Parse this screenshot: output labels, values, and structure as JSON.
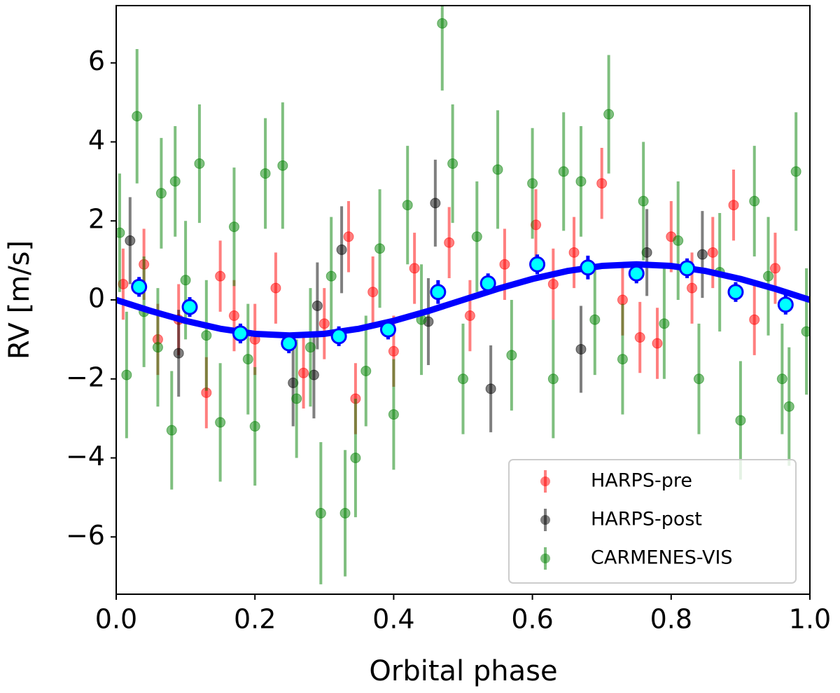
{
  "chart_data": {
    "type": "scatter",
    "xlabel": "Orbital phase",
    "ylabel": "RV [m/s]",
    "xlim": [
      0,
      1
    ],
    "ylim": [
      -7.45,
      7.45
    ],
    "xticks": [
      {
        "value": 0,
        "label": "0.0"
      },
      0.2,
      0.4,
      0.6,
      0.8,
      {
        "value": 1,
        "label": "1.0"
      }
    ],
    "yticks": [
      {
        "value": -6,
        "label": "−6"
      },
      {
        "value": -4,
        "label": "−4"
      },
      {
        "value": -2,
        "label": "−2"
      },
      0,
      2,
      4,
      6
    ],
    "legend": "lower right",
    "series": [
      {
        "name": "HARPS-pre",
        "color": "#ff0000",
        "alpha": 0.5,
        "x": [
          0.01,
          0.04,
          0.06,
          0.09,
          0.13,
          0.15,
          0.17,
          0.2,
          0.23,
          0.27,
          0.3,
          0.335,
          0.345,
          0.37,
          0.4,
          0.43,
          0.48,
          0.51,
          0.56,
          0.605,
          0.63,
          0.66,
          0.7,
          0.73,
          0.755,
          0.78,
          0.8,
          0.83,
          0.86,
          0.89,
          0.92,
          0.95
        ],
        "values": [
          0.4,
          0.9,
          -1.0,
          -0.5,
          -2.35,
          0.6,
          -0.4,
          -1.0,
          0.3,
          -1.85,
          -0.6,
          1.6,
          -2.5,
          0.2,
          -1.3,
          0.8,
          1.45,
          -0.4,
          0.9,
          1.9,
          0.4,
          1.2,
          2.95,
          0.0,
          -0.95,
          -1.1,
          1.6,
          0.3,
          1.2,
          2.4,
          -0.5,
          0.8
        ],
        "errors": [
          0.9,
          0.9,
          0.9,
          0.9,
          0.9,
          0.9,
          0.9,
          0.9,
          0.9,
          0.9,
          0.9,
          0.9,
          0.9,
          0.9,
          0.9,
          0.9,
          0.9,
          0.9,
          0.9,
          0.9,
          0.9,
          0.9,
          0.9,
          0.9,
          0.9,
          0.9,
          0.9,
          0.9,
          0.9,
          0.9,
          0.9,
          0.9
        ]
      },
      {
        "name": "HARPS-post",
        "color": "#000000",
        "alpha": 0.5,
        "x": [
          0.02,
          0.09,
          0.255,
          0.285,
          0.29,
          0.325,
          0.45,
          0.46,
          0.54,
          0.67,
          0.765,
          0.845
        ],
        "values": [
          1.5,
          -1.35,
          -2.1,
          -1.9,
          -0.15,
          1.27,
          -0.55,
          2.45,
          -2.25,
          -1.25,
          1.2,
          1.15
        ],
        "errors": [
          1.1,
          1.1,
          1.1,
          1.1,
          1.1,
          1.1,
          1.1,
          1.1,
          1.1,
          1.1,
          1.1,
          1.1
        ]
      },
      {
        "name": "CARMENES-VIS",
        "color": "#008000",
        "alpha": 0.5,
        "x": [
          0.005,
          0.015,
          0.03,
          0.04,
          0.06,
          0.065,
          0.08,
          0.085,
          0.1,
          0.12,
          0.13,
          0.15,
          0.17,
          0.19,
          0.2,
          0.215,
          0.24,
          0.26,
          0.28,
          0.295,
          0.31,
          0.33,
          0.345,
          0.36,
          0.38,
          0.4,
          0.42,
          0.44,
          0.47,
          0.485,
          0.5,
          0.52,
          0.55,
          0.57,
          0.6,
          0.63,
          0.645,
          0.67,
          0.69,
          0.71,
          0.73,
          0.76,
          0.79,
          0.81,
          0.84,
          0.87,
          0.9,
          0.92,
          0.94,
          0.96,
          0.97,
          0.98,
          0.995
        ],
        "values": [
          1.7,
          -1.9,
          4.65,
          -0.3,
          -1.2,
          2.7,
          -3.3,
          3.0,
          0.5,
          3.45,
          -0.9,
          -3.1,
          1.85,
          -1.5,
          -3.2,
          3.2,
          3.4,
          -2.5,
          -1.2,
          -5.4,
          0.6,
          -5.4,
          -4.0,
          -1.8,
          1.3,
          -2.9,
          2.4,
          -0.5,
          7.0,
          3.45,
          -2.0,
          1.6,
          3.3,
          -1.4,
          2.95,
          -2.0,
          3.25,
          3.0,
          -0.5,
          4.7,
          -1.5,
          2.5,
          -0.6,
          1.5,
          -2.0,
          0.7,
          -3.05,
          2.5,
          0.6,
          -2.0,
          -2.7,
          3.25,
          -0.8
        ],
        "errors": [
          1.5,
          1.6,
          1.7,
          1.4,
          1.5,
          1.4,
          1.5,
          1.4,
          1.5,
          1.5,
          1.4,
          1.5,
          1.5,
          1.4,
          1.5,
          1.4,
          1.6,
          1.5,
          1.5,
          1.8,
          1.5,
          1.6,
          1.5,
          1.4,
          1.5,
          1.4,
          1.5,
          1.4,
          1.7,
          1.5,
          1.4,
          1.4,
          1.5,
          1.4,
          1.4,
          1.5,
          1.5,
          1.4,
          1.4,
          1.5,
          1.4,
          1.5,
          1.4,
          1.5,
          1.4,
          1.5,
          1.5,
          1.4,
          1.5,
          1.4,
          1.5,
          1.5,
          1.6
        ]
      }
    ],
    "binned": {
      "color": "#00ffff",
      "edgecolor": "#0000ff",
      "x": [
        0.033,
        0.106,
        0.179,
        0.249,
        0.321,
        0.392,
        0.464,
        0.536,
        0.607,
        0.68,
        0.75,
        0.823,
        0.893,
        0.965
      ],
      "values": [
        0.33,
        -0.18,
        -0.85,
        -1.1,
        -0.92,
        -0.75,
        0.2,
        0.42,
        0.9,
        0.82,
        0.67,
        0.8,
        0.2,
        -0.12
      ],
      "errors": [
        0.25,
        0.25,
        0.25,
        0.25,
        0.25,
        0.25,
        0.3,
        0.25,
        0.25,
        0.3,
        0.25,
        0.25,
        0.25,
        0.25
      ]
    },
    "model": {
      "color": "#0000ff",
      "x": [
        0,
        0.05,
        0.1,
        0.15,
        0.2,
        0.25,
        0.3,
        0.35,
        0.4,
        0.45,
        0.5,
        0.55,
        0.6,
        0.65,
        0.7,
        0.75,
        0.8,
        0.85,
        0.9,
        0.95,
        1
      ],
      "values": [
        0,
        -0.28,
        -0.53,
        -0.73,
        -0.86,
        -0.9,
        -0.86,
        -0.73,
        -0.53,
        -0.28,
        0,
        0.28,
        0.53,
        0.73,
        0.86,
        0.9,
        0.86,
        0.73,
        0.53,
        0.28,
        0
      ]
    }
  }
}
